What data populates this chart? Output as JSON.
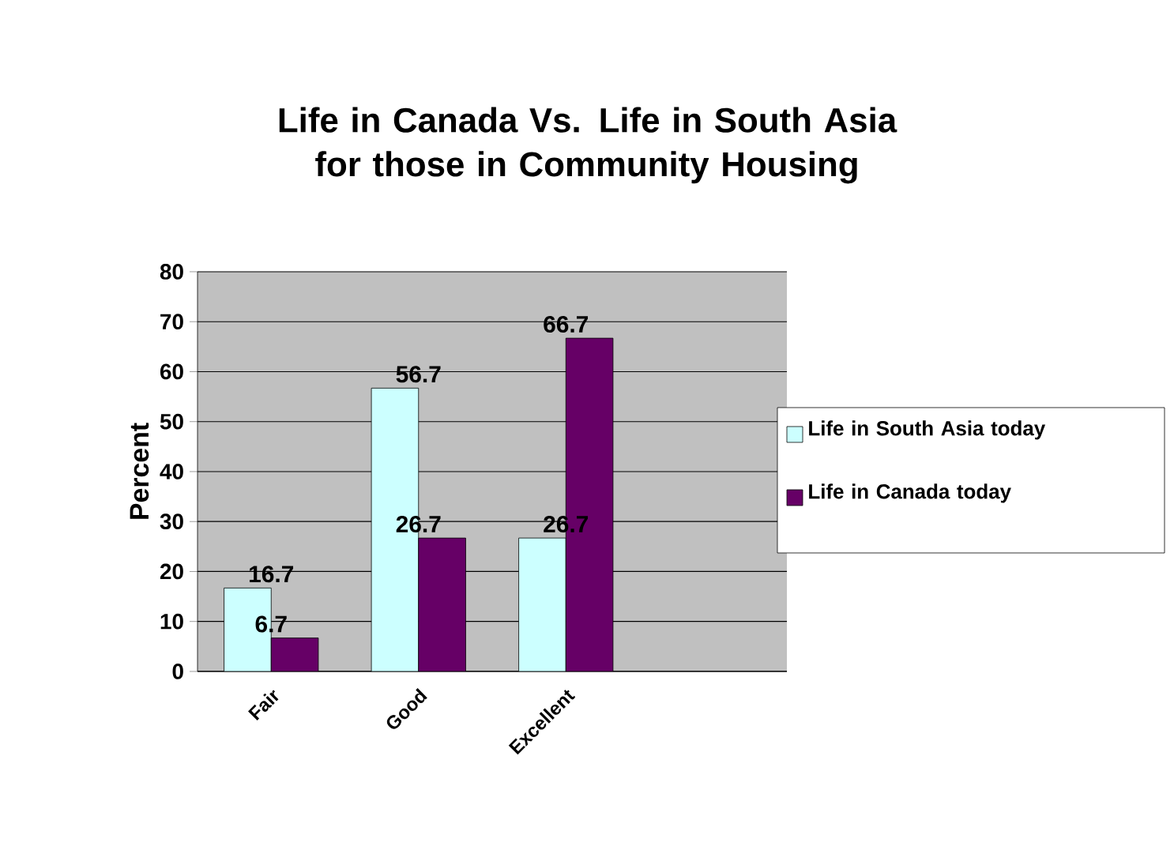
{
  "chart_data": {
    "type": "bar",
    "title": "Life in Canada Vs. Life in South Asia for those in Community Housing",
    "ylabel": "Percent",
    "categories": [
      "Fair",
      "Good",
      "Excellent",
      null
    ],
    "series": [
      {
        "name": "Life in South Asia today",
        "color": "#ccffff",
        "values": [
          16.7,
          56.7,
          26.7,
          null
        ]
      },
      {
        "name": "Life in Canada today",
        "color": "#660066",
        "values": [
          6.7,
          26.7,
          66.7,
          null
        ]
      }
    ],
    "ylim": [
      0,
      80
    ],
    "yticks": [
      0,
      10,
      20,
      30,
      40,
      50,
      60,
      70,
      80
    ],
    "grid": "y",
    "legend": "right",
    "data_labels": true
  }
}
